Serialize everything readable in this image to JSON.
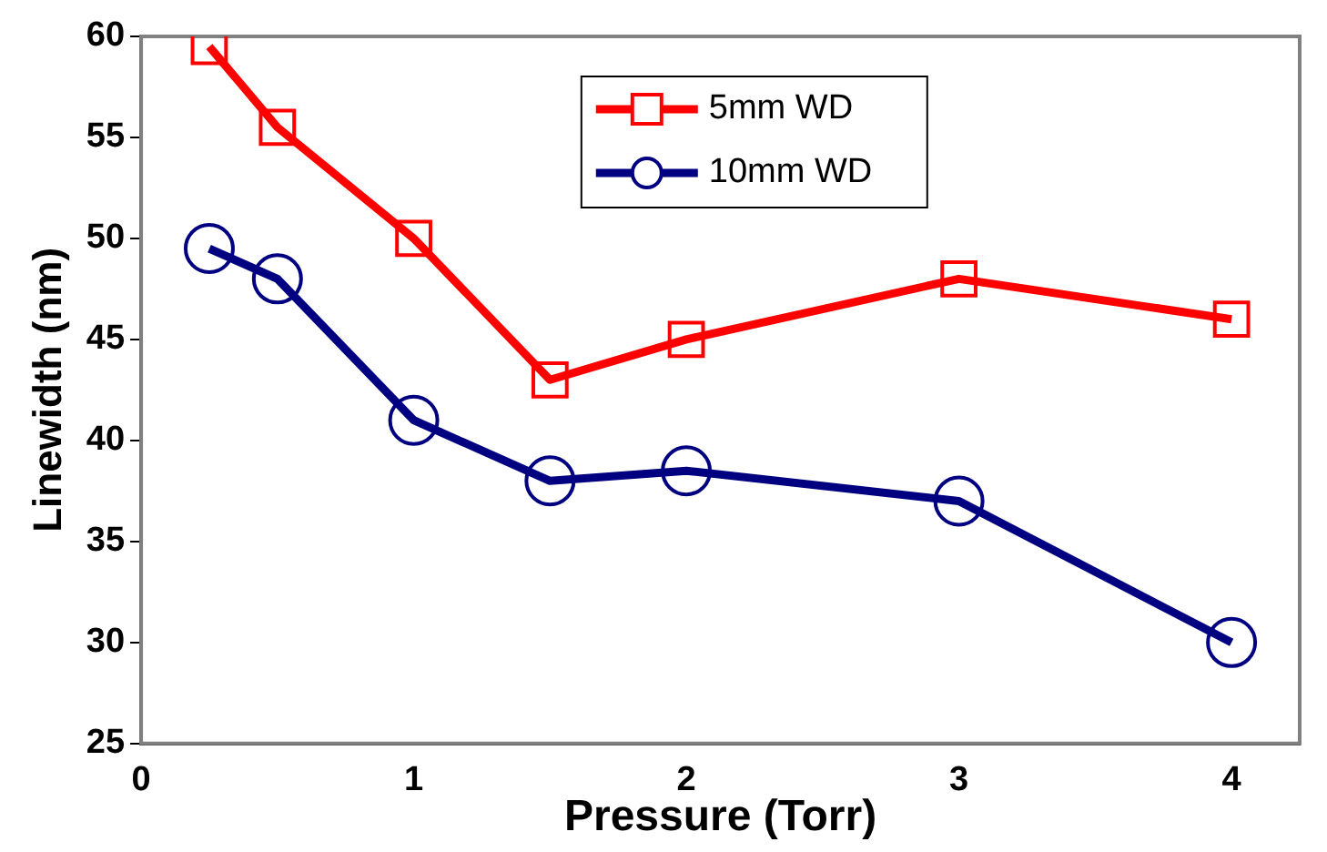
{
  "chart_data": {
    "type": "line",
    "xlabel": "Pressure (Torr)",
    "ylabel": "Linewidth (nm)",
    "x": [
      0.25,
      0.5,
      1,
      1.5,
      2,
      3,
      4
    ],
    "series": [
      {
        "name": "5mm WD",
        "color": "#ff0000",
        "marker": "square",
        "values": [
          59.5,
          55.5,
          50,
          43,
          45,
          48,
          46
        ]
      },
      {
        "name": "10mm WD",
        "color": "#000080",
        "marker": "circle",
        "values": [
          49.5,
          48,
          41,
          38,
          38.5,
          37,
          30
        ]
      }
    ],
    "xlim": [
      0,
      4.25
    ],
    "xticks": [
      0,
      1,
      2,
      3,
      4
    ],
    "ylim": [
      25,
      60
    ],
    "yticks": [
      25,
      30,
      35,
      40,
      45,
      50,
      55,
      60
    ],
    "grid": false,
    "legend": "top",
    "line_style": "solid"
  }
}
